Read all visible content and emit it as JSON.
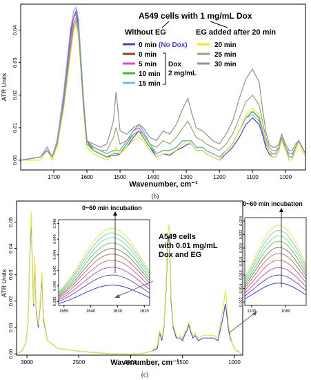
{
  "figure": {
    "panel_b_caption": "(b)",
    "panel_c_caption": "(c)"
  },
  "chart_data": [
    {
      "type": "line",
      "panel": "b",
      "title": "A549 cells with 1 mg/mL Dox",
      "xlabel": "Wavenumber, cm⁻¹",
      "ylabel": "ATR Units",
      "xlim": [
        1800,
        940
      ],
      "ylim": [
        -0.003,
        0.048
      ],
      "x_reversed": true,
      "x_ticks": [
        1700,
        1600,
        1500,
        1400,
        1300,
        1200,
        1100,
        1000
      ],
      "y_ticks": [
        0.0,
        0.01,
        0.02,
        0.03,
        0.04
      ],
      "y_tick_labels": [
        "0.00",
        "0.01",
        "0.02",
        "0.03",
        "0.04"
      ],
      "grid": false,
      "legend": {
        "heading_left": "Without EG",
        "heading_right": "EG added after 20 min",
        "no_dox_note": "(No Dox)",
        "dox_bracket": [
          "Dox",
          "2 mg/mL"
        ]
      },
      "x": [
        1800,
        1740,
        1720,
        1705,
        1690,
        1670,
        1650,
        1640,
        1632,
        1625,
        1610,
        1600,
        1580,
        1560,
        1540,
        1520,
        1512,
        1500,
        1480,
        1460,
        1443,
        1430,
        1410,
        1390,
        1370,
        1350,
        1330,
        1310,
        1295,
        1285,
        1270,
        1250,
        1240,
        1220,
        1200,
        1180,
        1160,
        1140,
        1120,
        1100,
        1080,
        1070,
        1060,
        1050,
        1040,
        1030,
        1020,
        1012,
        1000,
        990,
        980,
        970,
        960,
        950,
        940
      ],
      "series": [
        {
          "name": "0 min",
          "color": "#4b3cc8",
          "values": [
            0.0,
            0.001,
            0.004,
            0.001,
            0.006,
            0.02,
            0.038,
            0.044,
            0.046,
            0.042,
            0.018,
            0.006,
            0.003,
            0.002,
            0.001,
            0.0015,
            0.0015,
            0.002,
            0.004,
            0.007,
            0.009,
            0.007,
            0.004,
            0.001,
            0.002,
            0.0015,
            0.003,
            0.004,
            0.005,
            0.005,
            0.003,
            0.003,
            0.002,
            0.001,
            0.0,
            0.002,
            0.004,
            0.007,
            0.011,
            0.013,
            0.011,
            0.008,
            0.004,
            0.002,
            0.001,
            0.001,
            0.003,
            0.007,
            0.004,
            0.001,
            0.001,
            0.004,
            0.006,
            0.004,
            0.002
          ]
        },
        {
          "name": "0 min",
          "color": "#7a4a2a",
          "values": [
            0.0,
            0.001,
            0.004,
            0.001,
            0.006,
            0.02,
            0.039,
            0.044,
            0.045,
            0.041,
            0.018,
            0.006,
            0.004,
            0.003,
            0.002,
            0.003,
            0.003,
            0.003,
            0.006,
            0.009,
            0.011,
            0.009,
            0.005,
            0.002,
            0.003,
            0.003,
            0.004,
            0.006,
            0.006,
            0.006,
            0.004,
            0.004,
            0.003,
            0.002,
            0.001,
            0.003,
            0.005,
            0.009,
            0.013,
            0.015,
            0.013,
            0.009,
            0.005,
            0.003,
            0.002,
            0.002,
            0.004,
            0.007,
            0.004,
            0.001,
            0.001,
            0.004,
            0.006,
            0.004,
            0.002
          ]
        },
        {
          "name": "5 min",
          "color": "#d24cd2",
          "values": [
            0.0,
            0.001,
            0.004,
            0.001,
            0.006,
            0.019,
            0.037,
            0.044,
            0.045,
            0.04,
            0.017,
            0.006,
            0.004,
            0.003,
            0.002,
            0.003,
            0.003,
            0.003,
            0.006,
            0.009,
            0.01,
            0.008,
            0.005,
            0.002,
            0.003,
            0.003,
            0.004,
            0.006,
            0.006,
            0.006,
            0.004,
            0.004,
            0.003,
            0.002,
            0.001,
            0.003,
            0.005,
            0.009,
            0.013,
            0.015,
            0.013,
            0.009,
            0.005,
            0.003,
            0.002,
            0.002,
            0.004,
            0.007,
            0.004,
            0.001,
            0.001,
            0.004,
            0.006,
            0.004,
            0.002
          ]
        },
        {
          "name": "10 min",
          "color": "#3cb43c",
          "values": [
            0.0,
            0.001,
            0.003,
            0.001,
            0.005,
            0.017,
            0.033,
            0.04,
            0.042,
            0.038,
            0.016,
            0.005,
            0.003,
            0.002,
            0.001,
            0.002,
            0.002,
            0.002,
            0.005,
            0.008,
            0.009,
            0.007,
            0.004,
            0.002,
            0.003,
            0.003,
            0.004,
            0.006,
            0.006,
            0.006,
            0.004,
            0.004,
            0.003,
            0.002,
            0.001,
            0.003,
            0.005,
            0.009,
            0.013,
            0.015,
            0.013,
            0.009,
            0.005,
            0.003,
            0.002,
            0.002,
            0.004,
            0.006,
            0.004,
            0.001,
            0.001,
            0.004,
            0.006,
            0.004,
            0.002
          ]
        },
        {
          "name": "15 min",
          "color": "#78b4f0",
          "values": [
            0.0,
            0.001,
            0.004,
            0.001,
            0.006,
            0.021,
            0.04,
            0.046,
            0.047,
            0.043,
            0.019,
            0.006,
            0.004,
            0.003,
            0.002,
            0.003,
            0.003,
            0.003,
            0.006,
            0.009,
            0.011,
            0.009,
            0.005,
            0.002,
            0.003,
            0.003,
            0.004,
            0.006,
            0.006,
            0.006,
            0.004,
            0.004,
            0.003,
            0.002,
            0.001,
            0.003,
            0.005,
            0.009,
            0.013,
            0.014,
            0.012,
            0.009,
            0.005,
            0.003,
            0.002,
            0.002,
            0.004,
            0.007,
            0.004,
            0.001,
            0.001,
            0.004,
            0.006,
            0.004,
            0.002
          ]
        },
        {
          "name": "20 min",
          "color": "#e6e632",
          "values": [
            0.0,
            0.0,
            0.003,
            0.0,
            0.004,
            0.016,
            0.032,
            0.04,
            0.042,
            0.038,
            0.015,
            0.004,
            0.002,
            0.001,
            0.0,
            0.002,
            0.004,
            0.002,
            0.004,
            0.006,
            0.007,
            0.006,
            0.003,
            0.001,
            0.002,
            0.002,
            0.003,
            0.005,
            0.006,
            0.005,
            0.003,
            0.003,
            0.002,
            0.001,
            0.0,
            0.003,
            0.005,
            0.009,
            0.014,
            0.016,
            0.014,
            0.01,
            0.006,
            0.003,
            0.001,
            0.001,
            0.003,
            0.006,
            0.003,
            0.0,
            0.0,
            0.003,
            0.006,
            0.003,
            0.001
          ]
        },
        {
          "name": "25 min",
          "color": "#a0a078",
          "values": [
            0.0,
            0.001,
            0.003,
            0.001,
            0.005,
            0.017,
            0.034,
            0.041,
            0.043,
            0.039,
            0.016,
            0.005,
            0.004,
            0.003,
            0.003,
            0.007,
            0.01,
            0.005,
            0.006,
            0.008,
            0.009,
            0.008,
            0.005,
            0.004,
            0.006,
            0.005,
            0.007,
            0.01,
            0.012,
            0.01,
            0.007,
            0.006,
            0.005,
            0.004,
            0.003,
            0.005,
            0.008,
            0.013,
            0.018,
            0.02,
            0.017,
            0.012,
            0.007,
            0.004,
            0.003,
            0.003,
            0.004,
            0.007,
            0.004,
            0.002,
            0.002,
            0.004,
            0.006,
            0.004,
            0.002
          ]
        },
        {
          "name": "30 min",
          "color": "#909090",
          "values": [
            0.0,
            0.001,
            0.003,
            0.001,
            0.005,
            0.018,
            0.035,
            0.042,
            0.044,
            0.04,
            0.017,
            0.006,
            0.005,
            0.004,
            0.005,
            0.012,
            0.021,
            0.009,
            0.008,
            0.01,
            0.011,
            0.01,
            0.007,
            0.006,
            0.009,
            0.008,
            0.011,
            0.016,
            0.019,
            0.015,
            0.01,
            0.009,
            0.008,
            0.006,
            0.005,
            0.008,
            0.012,
            0.019,
            0.025,
            0.028,
            0.024,
            0.016,
            0.009,
            0.005,
            0.004,
            0.004,
            0.005,
            0.008,
            0.005,
            0.003,
            0.003,
            0.005,
            0.006,
            0.004,
            0.002
          ]
        }
      ]
    },
    {
      "type": "line",
      "panel": "c",
      "title": "",
      "annotation": [
        "A549 cells",
        "with 0.01 mg/mL",
        "Dox and EG"
      ],
      "xlabel": "Wavenumber, cm⁻¹",
      "ylabel": "ATR Units",
      "xlim": [
        3100,
        920
      ],
      "ylim": [
        -0.0005,
        0.058
      ],
      "x_reversed": true,
      "x_ticks": [
        3000,
        2500,
        2000,
        1500,
        1000
      ],
      "y_ticks": [
        0.0,
        0.01,
        0.02,
        0.03,
        0.04,
        0.05
      ],
      "y_tick_labels": [
        "0.00",
        "0.01",
        "0.02",
        "0.03",
        "0.04",
        "0.05"
      ],
      "grid": false,
      "x": [
        3100,
        3050,
        3010,
        2990,
        2970,
        2958,
        2945,
        2935,
        2925,
        2910,
        2890,
        2872,
        2855,
        2840,
        2800,
        2700,
        2500,
        2200,
        2000,
        1900,
        1800,
        1745,
        1720,
        1700,
        1680,
        1660,
        1645,
        1635,
        1630,
        1625,
        1610,
        1590,
        1560,
        1540,
        1520,
        1500,
        1470,
        1455,
        1440,
        1420,
        1400,
        1380,
        1350,
        1300,
        1240,
        1200,
        1160,
        1120,
        1100,
        1088,
        1080,
        1060,
        1040,
        1020,
        1000,
        980,
        960,
        940,
        920
      ],
      "series": [
        {
          "name": "0 min",
          "color": "#5050c8",
          "values": [
            0.0,
            0.001,
            0.004,
            0.012,
            0.04,
            0.051,
            0.03,
            0.018,
            0.035,
            0.016,
            0.01,
            0.019,
            0.029,
            0.013,
            0.005,
            0.002,
            0.001,
            0.0,
            0.0,
            0.0,
            0.001,
            0.002,
            0.008,
            0.005,
            0.01,
            0.024,
            0.04,
            0.044,
            0.045,
            0.042,
            0.02,
            0.01,
            0.006,
            0.006,
            0.006,
            0.005,
            0.008,
            0.009,
            0.011,
            0.008,
            0.006,
            0.007,
            0.005,
            0.006,
            0.006,
            0.006,
            0.005,
            0.012,
            0.016,
            0.019,
            0.017,
            0.01,
            0.006,
            0.004,
            0.002,
            0.001,
            0.001,
            0.0,
            0.0
          ]
        },
        {
          "name": "60 min",
          "color": "#e6e650",
          "values": [
            0.0,
            0.001,
            0.004,
            0.012,
            0.042,
            0.054,
            0.032,
            0.019,
            0.037,
            0.017,
            0.011,
            0.02,
            0.031,
            0.014,
            0.005,
            0.002,
            0.001,
            0.0,
            0.0,
            0.0,
            0.001,
            0.003,
            0.009,
            0.006,
            0.011,
            0.026,
            0.044,
            0.048,
            0.049,
            0.046,
            0.022,
            0.011,
            0.007,
            0.006,
            0.007,
            0.006,
            0.009,
            0.01,
            0.012,
            0.009,
            0.007,
            0.008,
            0.006,
            0.007,
            0.007,
            0.007,
            0.006,
            0.015,
            0.02,
            0.024,
            0.022,
            0.012,
            0.007,
            0.004,
            0.002,
            0.001,
            0.001,
            0.0,
            0.0
          ]
        }
      ],
      "insets": [
        {
          "label": "0~60 min incubation",
          "x_ticks": [
            1650,
            1640,
            1630,
            1620
          ],
          "xlim": [
            1652,
            1618
          ],
          "y_tick_labels": [
            "0.038",
            "0.040",
            "0.042",
            "0.044",
            "0.046",
            "0.048"
          ],
          "ylim": [
            0.0375,
            0.0485
          ],
          "curve_peaks": [
            0.0405,
            0.0418,
            0.0428,
            0.0437,
            0.0445,
            0.0452,
            0.0459,
            0.0466,
            0.0472,
            0.0478
          ],
          "colors": [
            "#4040c0",
            "#7050b0",
            "#c050c0",
            "#d07070",
            "#a08080",
            "#908070",
            "#70c070",
            "#80e080",
            "#90c0f0",
            "#e6e650"
          ]
        },
        {
          "label": "0~60 min incubation",
          "x_ticks": [
            1100,
            1080
          ],
          "xlim": [
            1104,
            1068
          ],
          "y_tick_labels": [
            "0.012",
            "0.014",
            "0.016",
            "0.018",
            "0.020",
            "0.022",
            "0.024"
          ],
          "ylim": [
            0.0115,
            0.0245
          ],
          "curve_peaks": [
            0.0152,
            0.0164,
            0.0175,
            0.0186,
            0.0196,
            0.0205,
            0.0214,
            0.0222,
            0.023,
            0.0238
          ],
          "colors": [
            "#4040c0",
            "#7050b0",
            "#c050c0",
            "#d07070",
            "#a08080",
            "#908070",
            "#70c070",
            "#80e080",
            "#90c0f0",
            "#e6e650"
          ]
        }
      ]
    }
  ]
}
